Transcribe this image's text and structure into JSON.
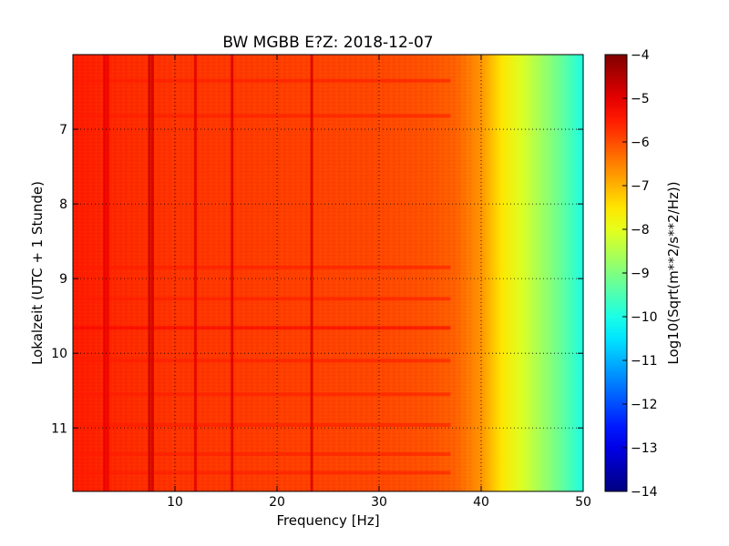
{
  "chart_data": {
    "type": "heatmap",
    "title": "BW MGBB E?Z: 2018-12-07",
    "xlabel": "Frequency [Hz]",
    "ylabel": "Lokalzeit (UTC + 1 Stunde)",
    "xlim": [
      0,
      50
    ],
    "ylim": [
      11.85,
      6.0
    ],
    "y_inverted": true,
    "x_ticks": [
      10,
      20,
      30,
      40,
      50
    ],
    "x_tick_labels": [
      "10",
      "20",
      "30",
      "40",
      "50"
    ],
    "y_ticks": [
      7,
      8,
      9,
      10,
      11
    ],
    "y_tick_labels": [
      "7",
      "8",
      "9",
      "10",
      "11"
    ],
    "grid": true,
    "colormap": "jet",
    "colorbar": {
      "label": "Log10(Sqrt(m**2/s**2/Hz))",
      "range": [
        -14,
        -4
      ],
      "ticks": [
        -4,
        -5,
        -6,
        -7,
        -8,
        -9,
        -10,
        -11,
        -12,
        -13,
        -14
      ],
      "tick_labels": [
        "−4",
        "−5",
        "−6",
        "−7",
        "−8",
        "−9",
        "−10",
        "−11",
        "−12",
        "−13",
        "−14"
      ]
    },
    "spectrum_profile": {
      "frequency_hz": [
        0,
        5,
        10,
        15,
        20,
        25,
        30,
        35,
        37.5,
        40,
        42,
        44,
        46,
        48,
        50
      ],
      "log_amplitude": [
        -5.5,
        -5.65,
        -5.75,
        -5.8,
        -5.85,
        -5.9,
        -5.95,
        -6.05,
        -6.2,
        -6.7,
        -7.5,
        -8.1,
        -8.7,
        -9.3,
        -10.0
      ]
    },
    "spectral_lines": [
      {
        "frequency_hz": 3.1,
        "level": -5.0
      },
      {
        "frequency_hz": 3.4,
        "level": -5.1
      },
      {
        "frequency_hz": 7.5,
        "level": -4.7
      },
      {
        "frequency_hz": 7.8,
        "level": -4.8
      },
      {
        "frequency_hz": 12.0,
        "level": -5.0
      },
      {
        "frequency_hz": 15.6,
        "level": -4.9
      },
      {
        "frequency_hz": 23.4,
        "level": -4.9
      }
    ],
    "time_bands": [
      {
        "time_h": 6.35,
        "level": -5.5
      },
      {
        "time_h": 6.82,
        "level": -5.5
      },
      {
        "time_h": 8.85,
        "level": -5.5
      },
      {
        "time_h": 9.27,
        "level": -5.5
      },
      {
        "time_h": 9.66,
        "level": -5.2
      },
      {
        "time_h": 10.1,
        "level": -5.5
      },
      {
        "time_h": 10.55,
        "level": -5.5
      },
      {
        "time_h": 10.96,
        "level": -5.5
      },
      {
        "time_h": 11.35,
        "level": -5.5
      },
      {
        "time_h": 11.6,
        "level": -5.5
      }
    ]
  }
}
